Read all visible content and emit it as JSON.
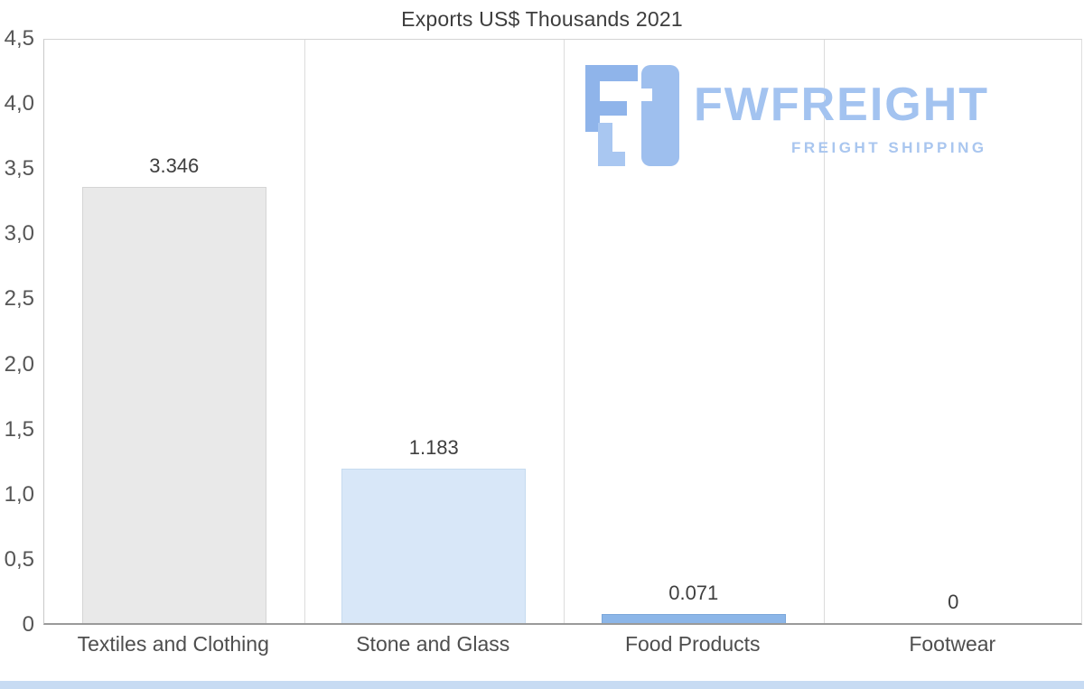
{
  "page": {
    "title": "Exports US$ Thousands 2021"
  },
  "logo": {
    "brand": "FWFREIGHT",
    "tagline": "FREIGHT SHIPPING",
    "mark_color": "#9ebfee",
    "text_color": "#a3c3f0"
  },
  "chart_data": {
    "type": "bar",
    "title": "Exports US$ Thousands 2021",
    "categories": [
      "Textiles and Clothing",
      "Stone and Glass",
      "Food Products",
      "Footwear"
    ],
    "values": [
      3.346,
      1.183,
      0.071,
      0
    ],
    "value_labels": [
      "3.346",
      "1.183",
      "0.071",
      "0"
    ],
    "y_ticks": [
      "4,5",
      "4,0",
      "3,5",
      "3,0",
      "2,5",
      "2,0",
      "1,5",
      "1,0",
      "0,5",
      "0"
    ],
    "ylim": [
      0,
      4.5
    ],
    "xlabel": "",
    "ylabel": "",
    "grid": true,
    "legend": "none",
    "decimal_style": "comma",
    "bar_fill_colors": [
      "#e9e9e9",
      "#d8e7f8",
      "#8cb6e8",
      "#8cb6e8"
    ],
    "bar_border_colors": [
      "#d5d5d5",
      "#c6dbf0",
      "#7aa6da",
      "#7aa6da"
    ],
    "gridline_color": "#dcdcdc",
    "axis_line_color": "#9a9a9a"
  },
  "footer": {
    "strip_color": "#c7dbf3"
  }
}
